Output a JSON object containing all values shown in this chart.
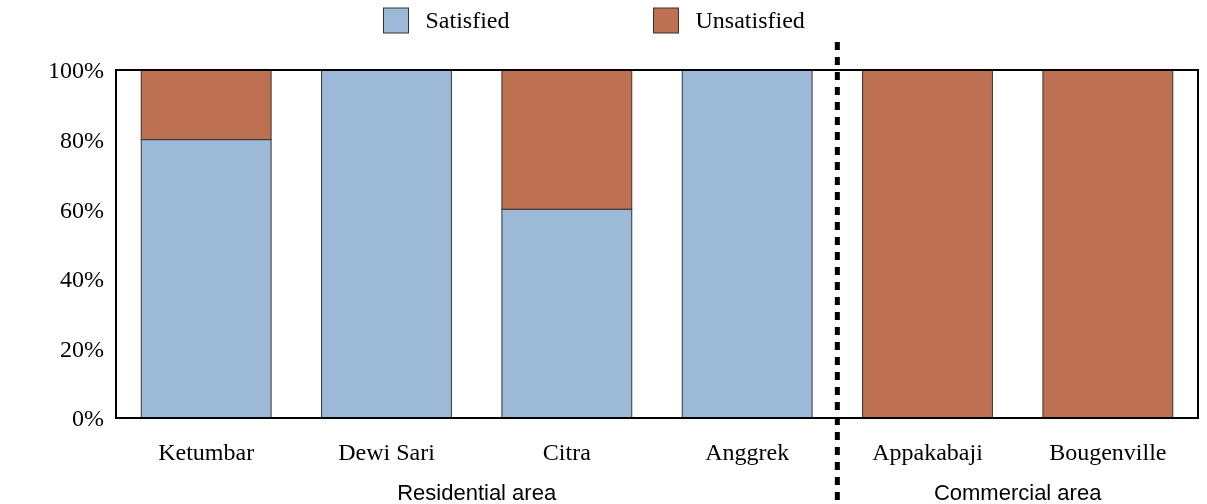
{
  "chart_data": {
    "type": "bar",
    "stacked": true,
    "categories": [
      "Ketumbar",
      "Dewi Sari",
      "Citra",
      "Anggrek",
      "Appakabaji",
      "Bougenville"
    ],
    "series": [
      {
        "name": "Satisfied",
        "color": "#9db9d8",
        "values": [
          80,
          100,
          60,
          100,
          0,
          0
        ]
      },
      {
        "name": "Unsatisfied",
        "color": "#bd7152",
        "values": [
          20,
          0,
          40,
          0,
          100,
          100
        ]
      }
    ],
    "ylim": [
      0,
      100
    ],
    "yticks": [
      {
        "value": 0,
        "label": "0%"
      },
      {
        "value": 20,
        "label": "20%"
      },
      {
        "value": 40,
        "label": "40%"
      },
      {
        "value": 60,
        "label": "60%"
      },
      {
        "value": 80,
        "label": "80%"
      },
      {
        "value": 100,
        "label": "100%"
      }
    ],
    "annotations": [
      "Residential area",
      "Commercial area"
    ],
    "legend": "top"
  }
}
